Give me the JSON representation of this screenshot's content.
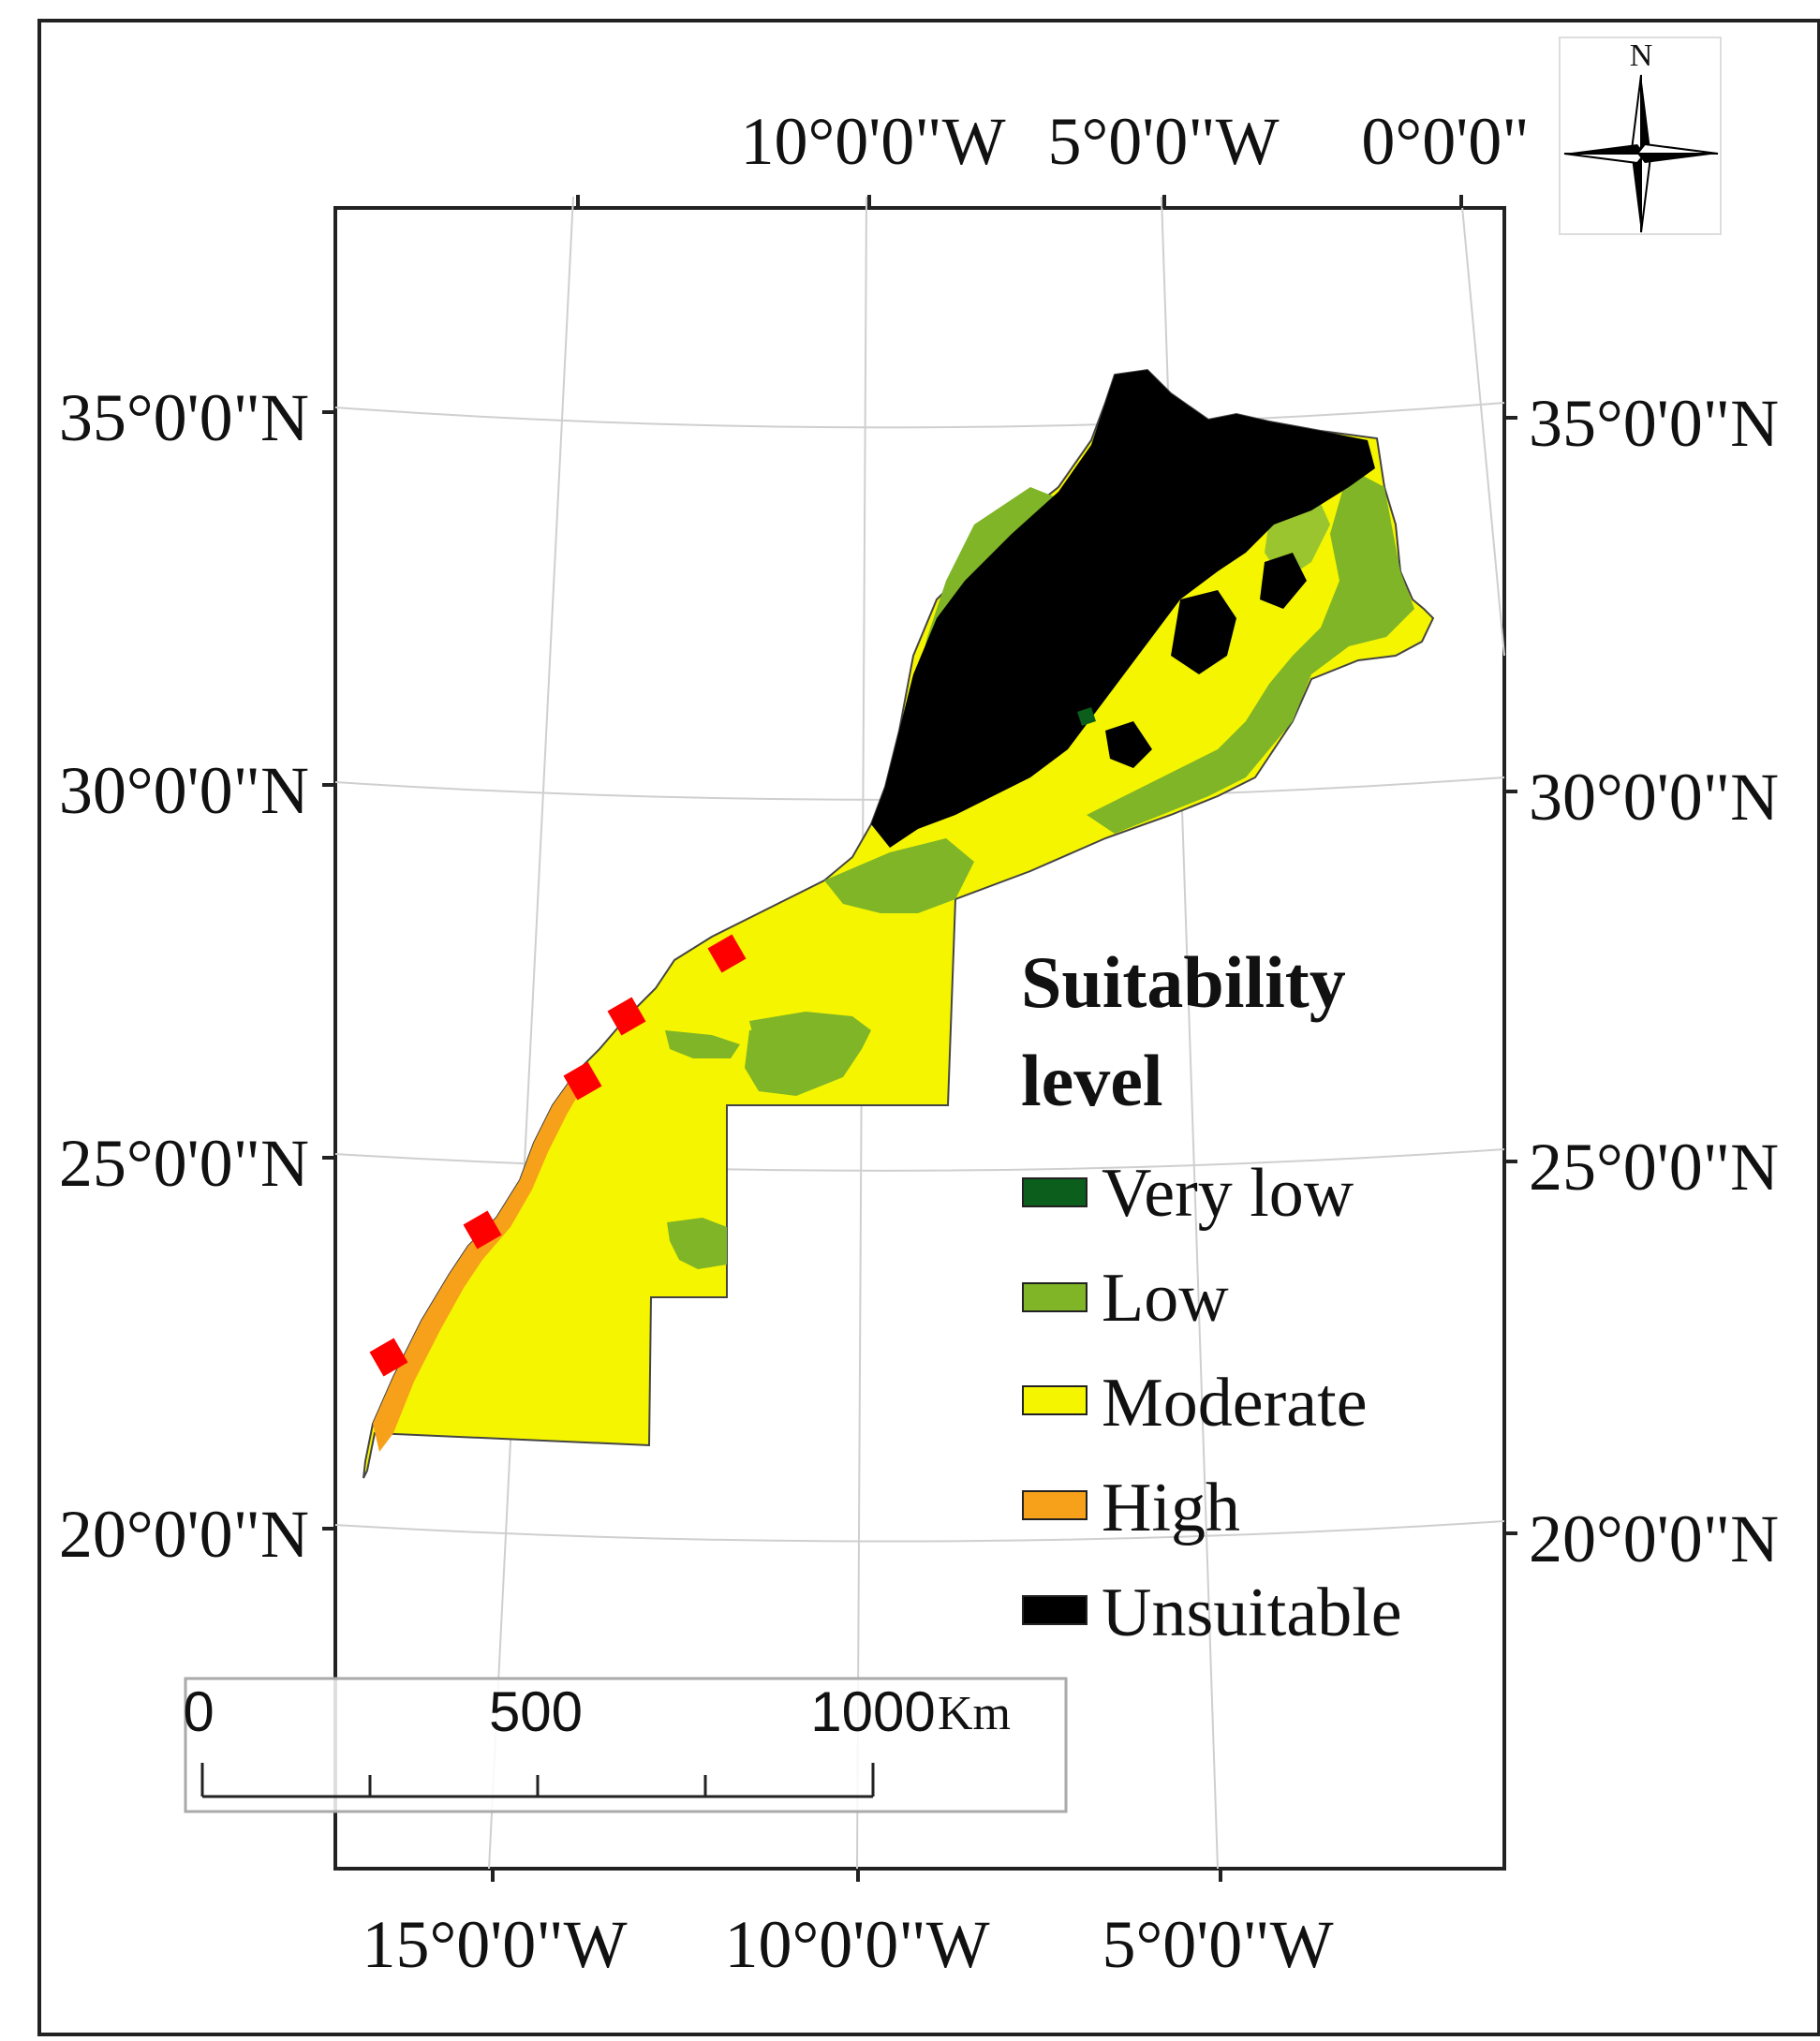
{
  "map": {
    "top_lon_labels": [
      "10°0'0\"W",
      "5°0'0\"W",
      "0°0'0\""
    ],
    "bottom_lon_labels": [
      "15°0'0\"W",
      "10°0'0\"W",
      "5°0'0\"W"
    ],
    "left_lat_labels": [
      "35°0'0\"N",
      "30°0'0\"N",
      "25°0'0\"N",
      "20°0'0\"N"
    ],
    "right_lat_labels": [
      "35°0'0\"N",
      "30°0'0\"N",
      "25°0'0\"N",
      "20°0'0\"N"
    ]
  },
  "north_arrow": {
    "label": "N",
    "icon": "north-arrow-icon"
  },
  "legend": {
    "title_line1": "Suitability",
    "title_line2": "level",
    "items": [
      {
        "label": "Very low",
        "color": "#0b5e1b"
      },
      {
        "label": "Low",
        "color": "#7fb526"
      },
      {
        "label": "Moderate",
        "color": "#f5f500"
      },
      {
        "label": "High",
        "color": "#f7a11a"
      },
      {
        "label": "Unsuitable",
        "color": "#000000"
      }
    ]
  },
  "scale_bar": {
    "labels": [
      "0",
      "500",
      "1000"
    ],
    "unit": "Km"
  },
  "markers": {
    "count": 5,
    "color": "#ff0000"
  }
}
